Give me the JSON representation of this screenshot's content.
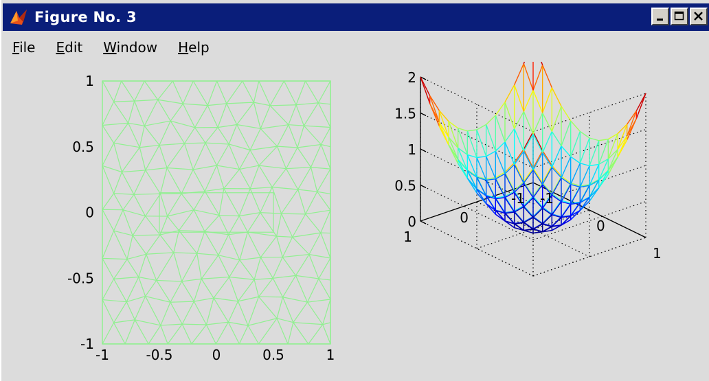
{
  "window": {
    "title": "Figure No. 3",
    "title_bar_color": "#0a1e7a",
    "controls": [
      "minimize-icon",
      "maximize-icon",
      "close-icon"
    ]
  },
  "menu": {
    "items": [
      {
        "label": "File",
        "mnemonic": "F",
        "rest": "ile"
      },
      {
        "label": "Edit",
        "mnemonic": "E",
        "rest": "dit"
      },
      {
        "label": "Window",
        "mnemonic": "W",
        "rest": "indow"
      },
      {
        "label": "Help",
        "mnemonic": "H",
        "rest": "elp"
      }
    ]
  },
  "chart_data": [
    {
      "type": "mesh",
      "mesh_color": "#90f090",
      "xlim": [
        -1,
        1
      ],
      "ylim": [
        -1,
        1
      ],
      "xticks": [
        "-1",
        "-0.5",
        "0",
        "0.5",
        "1"
      ],
      "yticks": [
        "1",
        "0.5",
        "0",
        "-0.5",
        "-1"
      ],
      "grid": false
    },
    {
      "type": "surface",
      "colormap": "jet",
      "zlim": [
        0,
        2
      ],
      "zticks": [
        "2",
        "1.5",
        "1",
        "0.5",
        "0"
      ],
      "yticks": [
        "1",
        "0",
        "-1"
      ],
      "xticks": [
        "-1",
        "0",
        "1"
      ],
      "grid": true,
      "function": "z = x^2 + y^2"
    }
  ]
}
